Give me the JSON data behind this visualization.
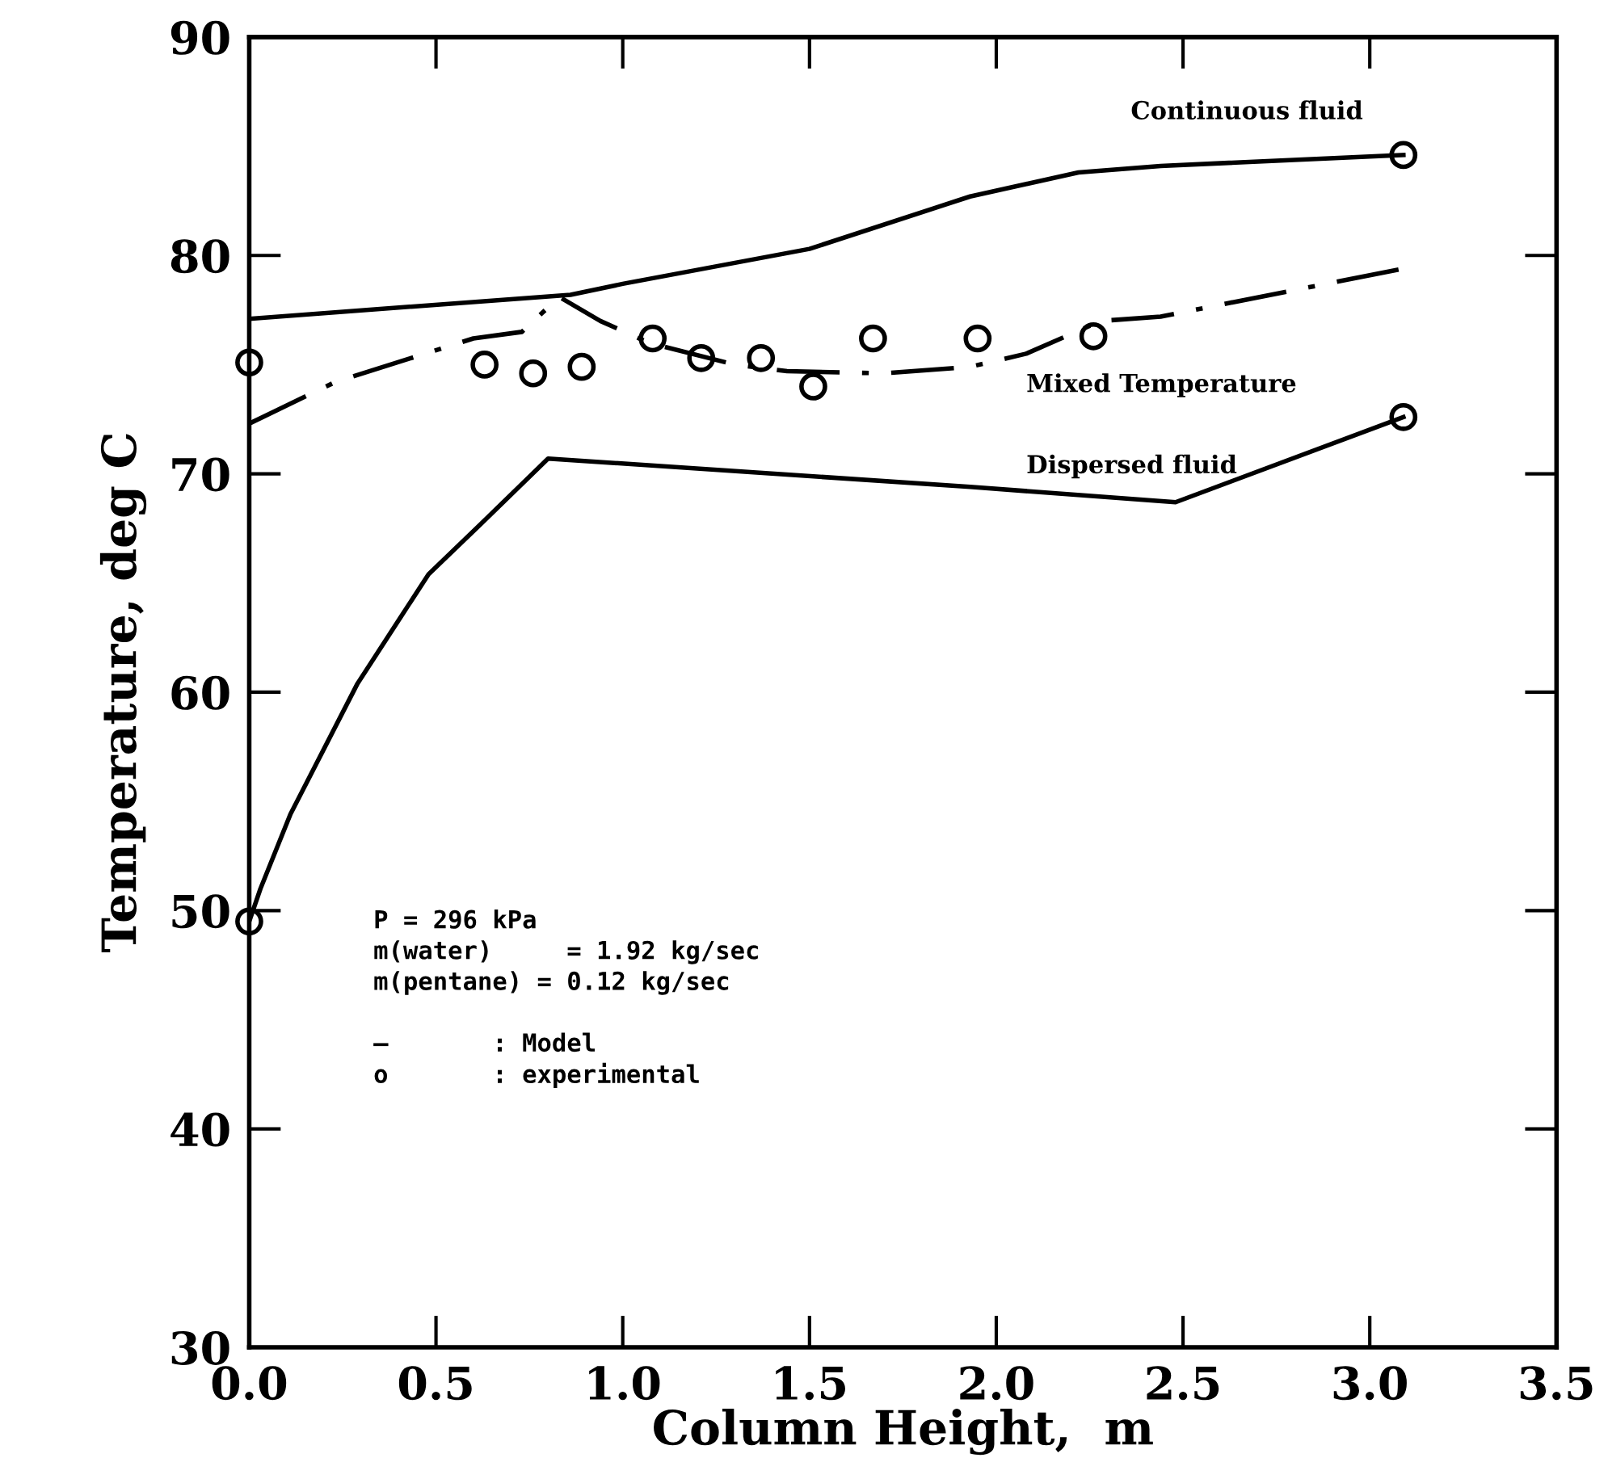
{
  "chart_data": {
    "type": "line",
    "xlabel": "Column Height,  m",
    "ylabel": "Temperature, deg C",
    "xlim": [
      0,
      3.5
    ],
    "xticks": [
      {
        "value": 0,
        "label": "0.0"
      },
      0.5,
      {
        "value": 1,
        "label": "1.0"
      },
      1.5,
      {
        "value": 2,
        "label": "2.0"
      },
      2.5,
      {
        "value": 3,
        "label": "3.0"
      },
      3.5
    ],
    "ylim": [
      30,
      90
    ],
    "yticks": [
      30,
      40,
      50,
      60,
      70,
      80,
      90
    ],
    "grid": false,
    "legend": false,
    "series": [
      {
        "name": "Continuous fluid",
        "color": "#000000",
        "line_style": "solid",
        "marker": "none",
        "x": [
          0,
          0.86,
          1.0,
          1.5,
          1.93,
          2.22,
          2.44,
          3.09
        ],
        "values": [
          77.1,
          78.2,
          78.7,
          80.3,
          82.7,
          83.8,
          84.1,
          84.6
        ]
      },
      {
        "name": "Mixed Temperature",
        "color": "#000000",
        "line_style": "dashdot",
        "marker": "none",
        "x": [
          0,
          0.23,
          0.6,
          0.73,
          0.83,
          0.94,
          1.07,
          1.3,
          1.44,
          1.7,
          1.93,
          2.08,
          2.28,
          2.44,
          3.09
        ],
        "values": [
          72.3,
          74.2,
          76.2,
          76.5,
          78.1,
          77.0,
          76.0,
          75.0,
          74.7,
          74.6,
          74.9,
          75.5,
          77.0,
          77.2,
          79.4
        ]
      },
      {
        "name": "Dispersed fluid",
        "color": "#000000",
        "line_style": "solid",
        "marker": "none",
        "x": [
          0,
          0.03,
          0.11,
          0.29,
          0.48,
          0.62,
          0.8,
          1.93,
          2.48,
          3.09
        ],
        "values": [
          49.5,
          51.0,
          54.4,
          60.4,
          65.4,
          67.7,
          70.7,
          69.4,
          68.7,
          72.6
        ]
      },
      {
        "type": "scatter",
        "color": "#000000",
        "marker": "circle",
        "x": [
          0,
          0.63,
          0.76,
          0.89,
          1.08,
          1.21,
          1.37,
          1.51,
          1.67,
          1.95,
          2.26,
          3.09,
          3.09,
          0
        ],
        "values": [
          75.1,
          75.0,
          74.6,
          74.9,
          76.2,
          75.3,
          75.3,
          74.0,
          76.2,
          76.2,
          76.3,
          84.6,
          72.6,
          49.5
        ]
      }
    ],
    "annotations": [
      "P = 296 kPa",
      "m(water)     = 1.92 kg/sec",
      "m(pentane) = 0.12 kg/sec",
      "—       : Model",
      "o       : experimental"
    ]
  }
}
